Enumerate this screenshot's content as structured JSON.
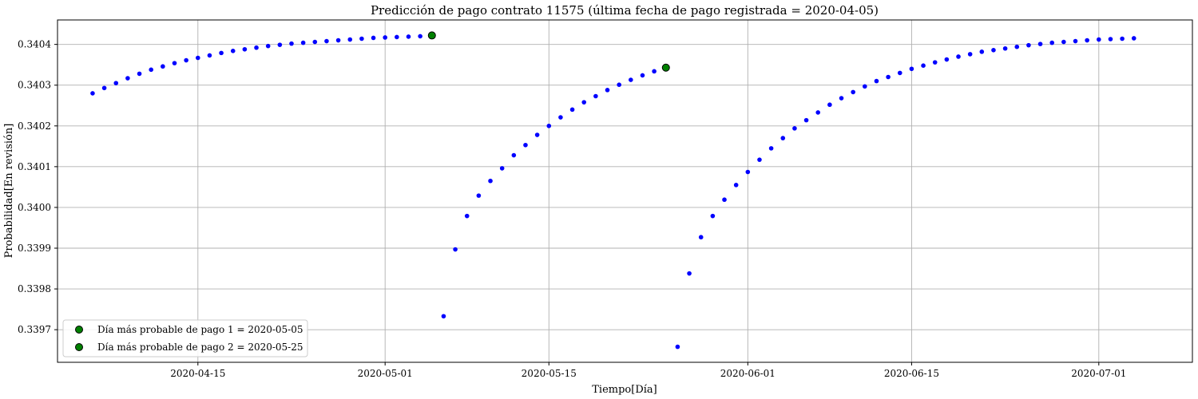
{
  "chart_data": {
    "type": "scatter",
    "title": "Predicción de pago contrato 11575 (última fecha de pago registrada = 2020-04-05)",
    "xlabel": "Tiempo[Día]",
    "ylabel": "Probabilidad[En revisión]",
    "xlim": [
      "2020-04-03",
      "2020-07-09"
    ],
    "ylim": [
      0.33962,
      0.34046
    ],
    "grid": true,
    "legend_position": "lower-left",
    "xticks": [
      "2020-04-15",
      "2020-05-01",
      "2020-05-15",
      "2020-06-01",
      "2020-06-15",
      "2020-07-01"
    ],
    "yticks": [
      "0.3397",
      "0.3398",
      "0.3399",
      "0.3400",
      "0.3401",
      "0.3402",
      "0.3403",
      "0.3404"
    ],
    "colors": {
      "series": "#0000ff",
      "highlight_fill": "#008000",
      "highlight_edge": "#000000",
      "grid": "#b0b0b0"
    },
    "series": [
      {
        "color": "#0000ff",
        "points": [
          [
            "2020-04-06",
            0.34028
          ],
          [
            "2020-04-07",
            0.340293
          ],
          [
            "2020-04-08",
            0.340305
          ],
          [
            "2020-04-09",
            0.340317
          ],
          [
            "2020-04-10",
            0.340328
          ],
          [
            "2020-04-11",
            0.340338
          ],
          [
            "2020-04-12",
            0.340346
          ],
          [
            "2020-04-13",
            0.340354
          ],
          [
            "2020-04-14",
            0.340361
          ],
          [
            "2020-04-15",
            0.340367
          ],
          [
            "2020-04-16",
            0.340373
          ],
          [
            "2020-04-17",
            0.340379
          ],
          [
            "2020-04-18",
            0.340384
          ],
          [
            "2020-04-19",
            0.340388
          ],
          [
            "2020-04-20",
            0.340392
          ],
          [
            "2020-04-21",
            0.340396
          ],
          [
            "2020-04-22",
            0.340399
          ],
          [
            "2020-04-23",
            0.340402
          ],
          [
            "2020-04-24",
            0.340404
          ],
          [
            "2020-04-25",
            0.340406
          ],
          [
            "2020-04-26",
            0.340408
          ],
          [
            "2020-04-27",
            0.34041
          ],
          [
            "2020-04-28",
            0.340412
          ],
          [
            "2020-04-29",
            0.340414
          ],
          [
            "2020-04-30",
            0.340416
          ],
          [
            "2020-05-01",
            0.340417
          ],
          [
            "2020-05-02",
            0.340418
          ],
          [
            "2020-05-03",
            0.340419
          ],
          [
            "2020-05-04",
            0.34042
          ],
          [
            "2020-05-06",
            0.339733
          ],
          [
            "2020-05-07",
            0.339897
          ],
          [
            "2020-05-08",
            0.339979
          ],
          [
            "2020-05-09",
            0.340029
          ],
          [
            "2020-05-10",
            0.340065
          ],
          [
            "2020-05-11",
            0.340096
          ],
          [
            "2020-05-12",
            0.340128
          ],
          [
            "2020-05-13",
            0.340153
          ],
          [
            "2020-05-14",
            0.340178
          ],
          [
            "2020-05-15",
            0.3402
          ],
          [
            "2020-05-16",
            0.340221
          ],
          [
            "2020-05-17",
            0.34024
          ],
          [
            "2020-05-18",
            0.340258
          ],
          [
            "2020-05-19",
            0.340273
          ],
          [
            "2020-05-20",
            0.340288
          ],
          [
            "2020-05-21",
            0.340301
          ],
          [
            "2020-05-22",
            0.340313
          ],
          [
            "2020-05-23",
            0.340324
          ],
          [
            "2020-05-24",
            0.340334
          ],
          [
            "2020-05-26",
            0.339658
          ],
          [
            "2020-05-27",
            0.339838
          ],
          [
            "2020-05-28",
            0.339927
          ],
          [
            "2020-05-29",
            0.339979
          ],
          [
            "2020-05-30",
            0.340019
          ],
          [
            "2020-05-31",
            0.340055
          ],
          [
            "2020-06-01",
            0.340087
          ],
          [
            "2020-06-02",
            0.340117
          ],
          [
            "2020-06-03",
            0.340145
          ],
          [
            "2020-06-04",
            0.34017
          ],
          [
            "2020-06-05",
            0.340194
          ],
          [
            "2020-06-06",
            0.340214
          ],
          [
            "2020-06-07",
            0.340233
          ],
          [
            "2020-06-08",
            0.340252
          ],
          [
            "2020-06-09",
            0.340268
          ],
          [
            "2020-06-10",
            0.340283
          ],
          [
            "2020-06-11",
            0.340297
          ],
          [
            "2020-06-12",
            0.34031
          ],
          [
            "2020-06-13",
            0.34032
          ],
          [
            "2020-06-14",
            0.34033
          ],
          [
            "2020-06-15",
            0.34034
          ],
          [
            "2020-06-16",
            0.340348
          ],
          [
            "2020-06-17",
            0.340356
          ],
          [
            "2020-06-18",
            0.340363
          ],
          [
            "2020-06-19",
            0.34037
          ],
          [
            "2020-06-20",
            0.340376
          ],
          [
            "2020-06-21",
            0.340382
          ],
          [
            "2020-06-22",
            0.340386
          ],
          [
            "2020-06-23",
            0.34039
          ],
          [
            "2020-06-24",
            0.340394
          ],
          [
            "2020-06-25",
            0.340398
          ],
          [
            "2020-06-26",
            0.340401
          ],
          [
            "2020-06-27",
            0.340404
          ],
          [
            "2020-06-28",
            0.340406
          ],
          [
            "2020-06-29",
            0.340408
          ],
          [
            "2020-06-30",
            0.34041
          ],
          [
            "2020-07-01",
            0.340412
          ],
          [
            "2020-07-02",
            0.340413
          ],
          [
            "2020-07-03",
            0.340414
          ],
          [
            "2020-07-04",
            0.340415
          ]
        ]
      }
    ],
    "highlights": [
      {
        "name": "Día más probable de pago 1 = 2020-05-05",
        "x": "2020-05-05",
        "y": 0.340422,
        "color": "#008000"
      },
      {
        "name": "Día más probable de pago 2 = 2020-05-25",
        "x": "2020-05-25",
        "y": 0.340343,
        "color": "#008000"
      }
    ]
  }
}
